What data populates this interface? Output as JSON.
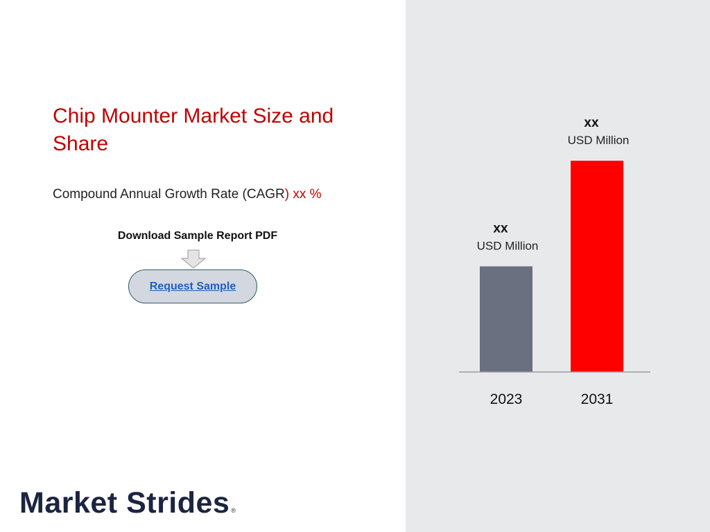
{
  "title": "Chip Mounter Market Size and Share",
  "cagr": {
    "label": "Compound Annual Growth Rate (CAGR",
    "value": ") xx %"
  },
  "download": {
    "label": "Download Sample Report PDF",
    "button_label": "Request Sample"
  },
  "brand": {
    "name": "Market Strides",
    "reg_mark": "®"
  },
  "chart_data": {
    "type": "bar",
    "categories": [
      "2023",
      "2031"
    ],
    "values": [
      1,
      2
    ],
    "value_labels": [
      "xx",
      "xx"
    ],
    "unit_label": "USD Million",
    "colors": [
      "#6b7080",
      "#ff0000"
    ],
    "grid": false,
    "legend": "none"
  }
}
